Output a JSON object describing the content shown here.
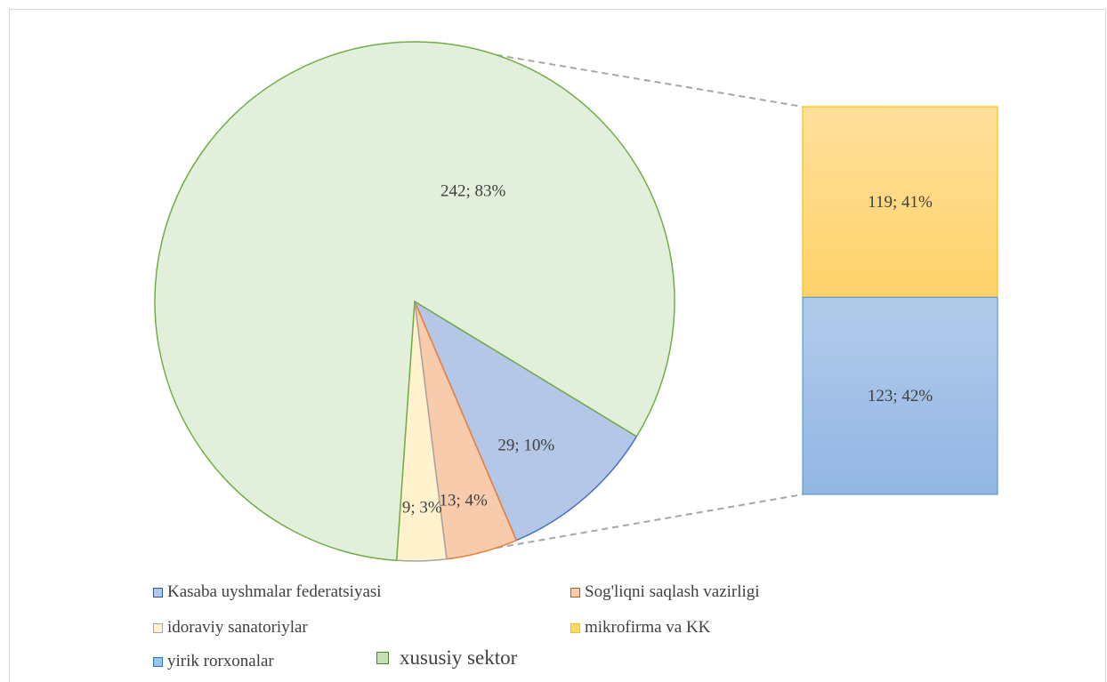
{
  "chart_data": {
    "type": "pie",
    "subtype": "bar-of-pie",
    "title": "",
    "pie": {
      "slices": [
        {
          "category": "Kasaba uyshmalar federatsiyasi",
          "value": 29,
          "label": "29; 10%",
          "fill": "#b4c7e7",
          "stroke": "#4472c4"
        },
        {
          "category": "Sog'liqni saqlash vazirligi",
          "value": 13,
          "label": "13; 4%",
          "fill": "#f8cbad",
          "stroke": "#ed7d31"
        },
        {
          "category": "idoraviy sanatoriylar",
          "value": 9,
          "label": "9; 3%",
          "fill": "#fff2cc",
          "stroke": "#a5a5a5"
        },
        {
          "category": "xususiy sektor",
          "value": 242,
          "label": "242; 83%",
          "fill": "#e2efda",
          "stroke": "#70ad47"
        }
      ]
    },
    "bar": {
      "segments": [
        {
          "category": "mikrofirma va KK",
          "value": 119,
          "label": "119; 41%",
          "fill_top": "#ffdf9b",
          "fill_bottom": "#ffd26a",
          "stroke": "#ffc000"
        },
        {
          "category": "yirik rorxonalar",
          "value": 123,
          "label": "123; 42%",
          "fill_top": "#b2cbea",
          "fill_bottom": "#93b6e4",
          "stroke": "#5b9bd5"
        }
      ]
    },
    "legend_position": "bottom",
    "legend": [
      {
        "label": "Kasaba uyshmalar federatsiyasi",
        "fill": "#b4c7e7",
        "stroke": "#2f5597"
      },
      {
        "label": "Sog'liqni saqlash vazirligi",
        "fill": "#f8cbad",
        "stroke": "#c55a11"
      },
      {
        "label": "idoraviy sanatoriylar",
        "fill": "#fff2cc",
        "stroke": "#a5a5a5"
      },
      {
        "label": "mikrofirma va KK",
        "fill": "#ffd966",
        "stroke": "#ffc000"
      },
      {
        "label": "yirik rorxonalar",
        "fill": "#9dc3e6",
        "stroke": "#2e75b6"
      },
      {
        "label": "xususiy sektor",
        "fill": "#c5e0b4",
        "stroke": "#548235"
      }
    ]
  }
}
